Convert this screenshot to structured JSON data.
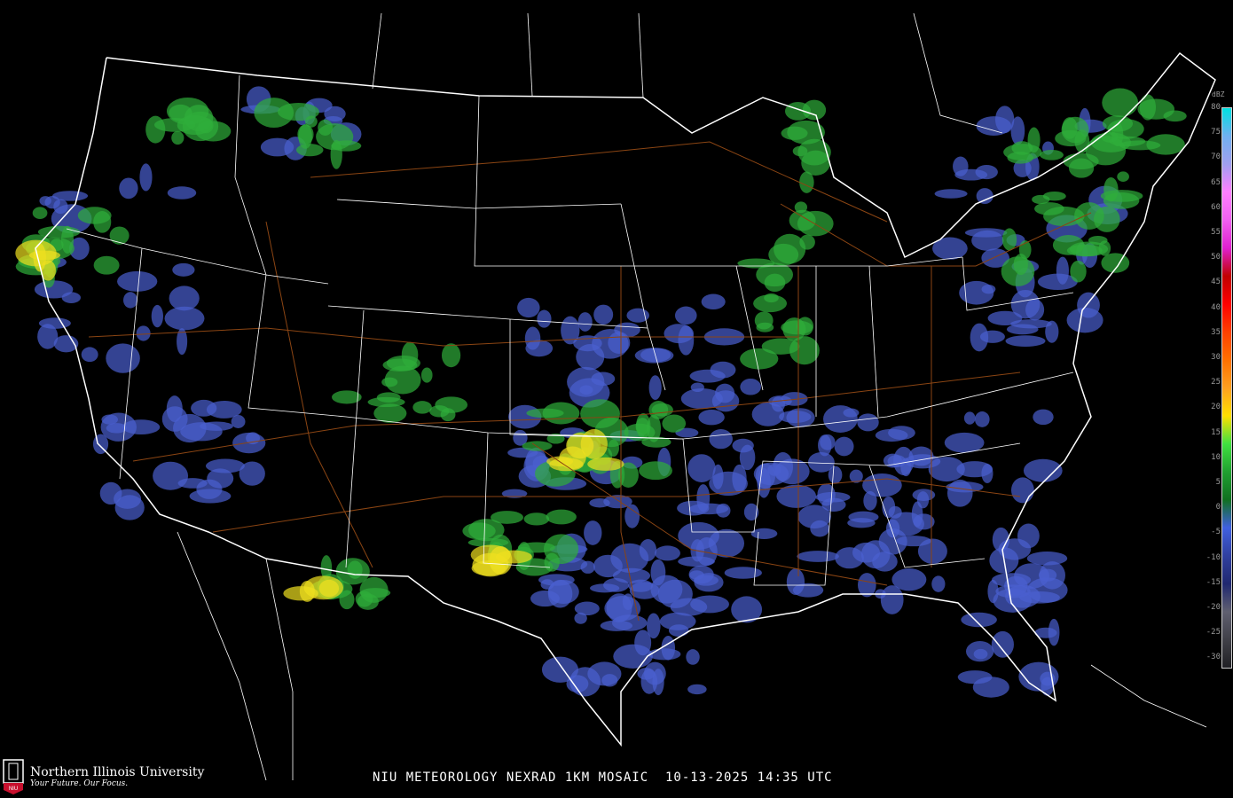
{
  "map": {
    "caption": "NIU METEOROLOGY NEXRAD 1KM MOSAIC  10-13-2025 14:35 UTC",
    "legend": {
      "unit": "dBZ",
      "ticks": [
        "80",
        "75",
        "70",
        "65",
        "60",
        "55",
        "50",
        "45",
        "40",
        "35",
        "30",
        "25",
        "20",
        "15",
        "10",
        "5",
        "0",
        "-5",
        "-10",
        "-15",
        "-20",
        "-25",
        "-30"
      ],
      "colors": [
        "#00e0e0",
        "#70b0f0",
        "#a0a0f0",
        "#ff80ff",
        "#f060f0",
        "#e020d0",
        "#c00000",
        "#ff0000",
        "#ff4000",
        "#ff7000",
        "#ffa020",
        "#ffe000",
        "#40e040",
        "#20a030",
        "#107020",
        "#4060e0",
        "#3040a0",
        "#202870",
        "#606070",
        "#404048",
        "#202024"
      ]
    },
    "colors": {
      "border": "#ffffff",
      "roads": "#8b4513",
      "echo_light": "#4a5fd0",
      "echo_moderate": "#2fae3a",
      "echo_heavy": "#f0e020"
    }
  },
  "branding": {
    "name": "Northern Illinois University",
    "tagline": "Your Future. Our Focus.",
    "seal_text": "NIU"
  }
}
